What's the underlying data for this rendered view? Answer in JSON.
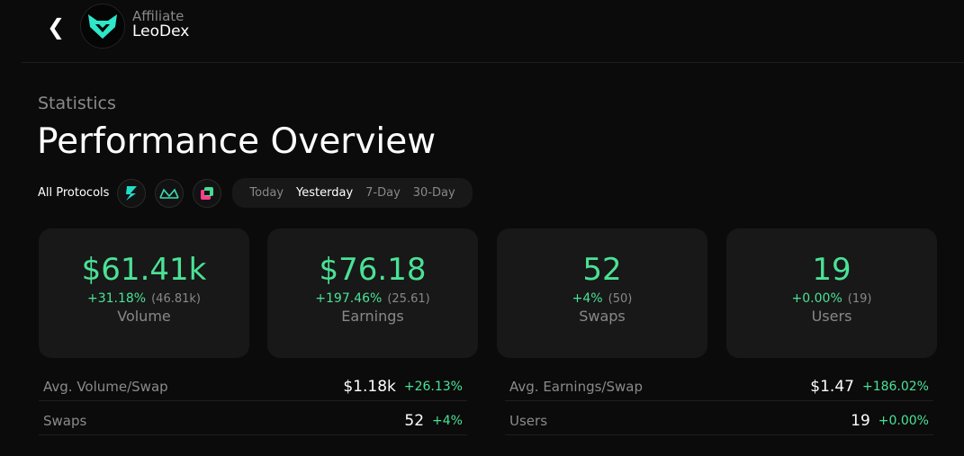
{
  "header": {
    "subtitle": "Affiliate",
    "name": "LeoDex"
  },
  "page": {
    "section": "Statistics",
    "title": "Performance Overview"
  },
  "filters": {
    "all_protocols": "All Protocols",
    "protocols": [
      "thorchain-icon",
      "maya-icon",
      "chainflip-icon"
    ],
    "ranges": [
      "Today",
      "Yesterday",
      "7-Day",
      "30-Day"
    ],
    "active_range": "Yesterday"
  },
  "cards": [
    {
      "value": "$61.41k",
      "change": "+31.18%",
      "previous": "(46.81k)",
      "label": "Volume"
    },
    {
      "value": "$76.18",
      "change": "+197.46%",
      "previous": "(25.61)",
      "label": "Earnings"
    },
    {
      "value": "52",
      "change": "+4%",
      "previous": "(50)",
      "label": "Swaps"
    },
    {
      "value": "19",
      "change": "+0.00%",
      "previous": "(19)",
      "label": "Users"
    }
  ],
  "rows": [
    {
      "label": "Avg. Volume/Swap",
      "value": "$1.18k",
      "change": "+26.13%"
    },
    {
      "label": "Avg. Earnings/Swap",
      "value": "$1.47",
      "change": "+186.02%"
    },
    {
      "label": "Swaps",
      "value": "52",
      "change": "+4%"
    },
    {
      "label": "Users",
      "value": "19",
      "change": "+0.00%"
    }
  ],
  "colors": {
    "accent": "#4ae296",
    "background": "#0b0b0b",
    "card": "#181818"
  }
}
